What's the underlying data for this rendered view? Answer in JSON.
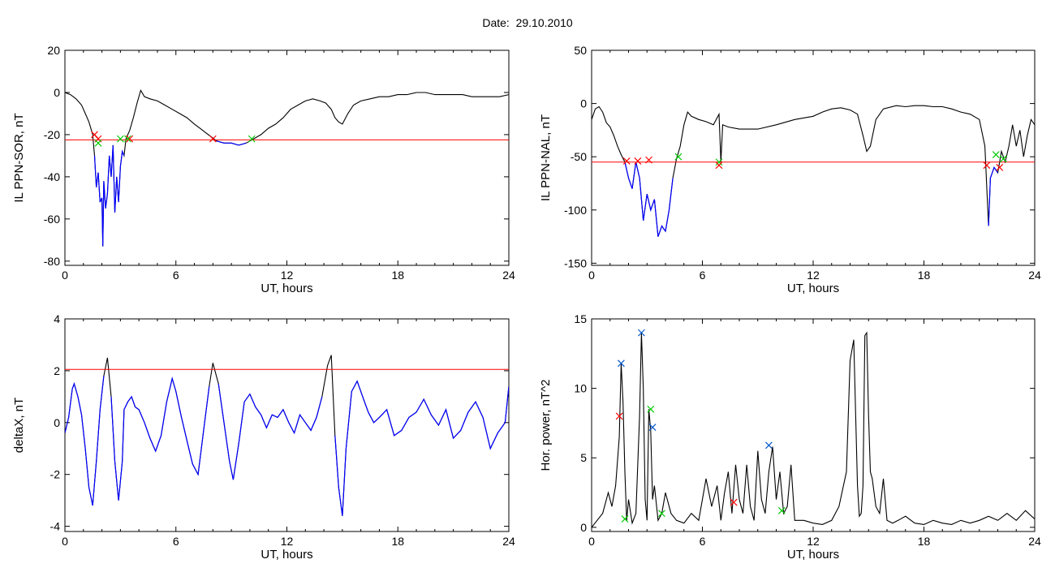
{
  "header": {
    "title_label": "Date:",
    "title_date": "29.10.2010"
  },
  "colors": {
    "trace": "#000000",
    "threshold": "#ff0000",
    "below": "#0000ff",
    "marker_start": "#ff0000",
    "marker_end": "#00cc00",
    "marker_peak": "#0055cc"
  },
  "chart_data": [
    {
      "id": "sor",
      "type": "line",
      "ylabel": "IL PPN-SOR, nT",
      "xlabel": "UT, hours",
      "xlim": [
        0,
        24
      ],
      "ylim": [
        -82,
        20
      ],
      "xticks": [
        0,
        6,
        12,
        18,
        24
      ],
      "yticks": [
        20,
        0,
        -20,
        -40,
        -60,
        -80
      ],
      "threshold": -22.5,
      "series": [
        {
          "x": [
            0,
            0.3,
            0.6,
            0.9,
            1.1,
            1.3,
            1.5,
            1.6,
            1.7,
            1.8,
            1.9,
            2.0,
            2.05,
            2.1,
            2.2,
            2.3,
            2.4,
            2.5,
            2.6,
            2.7,
            2.8,
            2.9,
            3.0,
            3.1,
            3.2,
            3.3,
            3.4,
            3.5,
            3.7,
            3.9,
            4.1,
            4.3,
            4.6,
            5.0,
            5.4,
            5.8,
            6.2,
            6.6,
            7.0,
            7.3,
            7.6,
            7.9,
            8.2,
            8.6,
            9.0,
            9.4,
            9.8,
            10.2,
            10.6,
            11.0,
            11.4,
            11.8,
            12.2,
            12.6,
            13.0,
            13.4,
            13.8,
            14.1,
            14.4,
            14.6,
            14.8,
            15.0,
            15.3,
            15.6,
            16.0,
            16.5,
            17.0,
            17.5,
            18.0,
            18.5,
            19.0,
            19.5,
            20.0,
            20.5,
            21.0,
            21.5,
            22.0,
            22.5,
            23.0,
            23.5,
            24.0
          ],
          "y": [
            0,
            -1,
            -3,
            -6,
            -10,
            -14,
            -20,
            -30,
            -45,
            -38,
            -52,
            -50,
            -73,
            -42,
            -55,
            -48,
            -30,
            -40,
            -25,
            -57,
            -40,
            -52,
            -35,
            -28,
            -30,
            -22,
            -20,
            -18,
            -12,
            -5,
            1,
            -2,
            -3,
            -4,
            -6,
            -8,
            -10,
            -12,
            -15,
            -17,
            -19,
            -21,
            -23,
            -24,
            -24,
            -25,
            -24,
            -22,
            -20,
            -17,
            -15,
            -12,
            -8,
            -6,
            -4,
            -3,
            -4,
            -5,
            -8,
            -12,
            -14,
            -15,
            -10,
            -6,
            -4,
            -3,
            -2,
            -2,
            -1,
            -1,
            0,
            0,
            -1,
            -1,
            -1,
            -1,
            -2,
            -2,
            -2,
            -2,
            -1
          ]
        }
      ],
      "markers": [
        {
          "x": 1.6,
          "y": -20,
          "kind": "start"
        },
        {
          "x": 1.8,
          "y": -22,
          "kind": "start"
        },
        {
          "x": 1.8,
          "y": -24,
          "kind": "end"
        },
        {
          "x": 3.0,
          "y": -22,
          "kind": "end"
        },
        {
          "x": 3.5,
          "y": -22,
          "kind": "start"
        },
        {
          "x": 3.4,
          "y": -22,
          "kind": "end"
        },
        {
          "x": 8.0,
          "y": -22,
          "kind": "start"
        },
        {
          "x": 10.1,
          "y": -22,
          "kind": "end"
        }
      ]
    },
    {
      "id": "nal",
      "type": "line",
      "ylabel": "IL PPN-NAL, nT",
      "xlabel": "UT, hours",
      "xlim": [
        0,
        24
      ],
      "ylim": [
        -152,
        50
      ],
      "xticks": [
        0,
        6,
        12,
        18,
        24
      ],
      "yticks": [
        50,
        0,
        -50,
        -100,
        -150
      ],
      "threshold": -55,
      "series": [
        {
          "x": [
            0,
            0.2,
            0.4,
            0.6,
            0.8,
            1.0,
            1.2,
            1.4,
            1.6,
            1.8,
            2.0,
            2.2,
            2.4,
            2.6,
            2.8,
            3.0,
            3.2,
            3.4,
            3.6,
            3.8,
            4.0,
            4.2,
            4.4,
            4.6,
            4.8,
            5.0,
            5.2,
            5.4,
            5.8,
            6.2,
            6.6,
            6.9,
            7.0,
            7.1,
            7.4,
            8.0,
            9.0,
            10.0,
            11.0,
            12.0,
            12.5,
            13.0,
            13.5,
            14.0,
            14.4,
            14.7,
            14.9,
            15.1,
            15.4,
            15.8,
            16.5,
            17.0,
            17.5,
            18.0,
            18.5,
            19.0,
            19.5,
            20.0,
            20.5,
            21.0,
            21.3,
            21.5,
            21.6,
            21.8,
            22.0,
            22.2,
            22.4,
            22.6,
            22.8,
            23.0,
            23.2,
            23.4,
            23.6,
            23.8,
            24.0
          ],
          "y": [
            -15,
            -5,
            -3,
            -8,
            -18,
            -22,
            -30,
            -40,
            -48,
            -55,
            -70,
            -80,
            -55,
            -70,
            -110,
            -85,
            -100,
            -90,
            -125,
            -115,
            -120,
            -100,
            -70,
            -52,
            -40,
            -20,
            -8,
            -12,
            -15,
            -17,
            -20,
            -10,
            -55,
            -20,
            -22,
            -24,
            -24,
            -20,
            -15,
            -12,
            -8,
            -5,
            -4,
            -6,
            -10,
            -30,
            -45,
            -40,
            -15,
            -5,
            -2,
            -3,
            -2,
            -2,
            -3,
            -3,
            -5,
            -8,
            -10,
            -15,
            -40,
            -115,
            -70,
            -60,
            -65,
            -45,
            -55,
            -40,
            -20,
            -40,
            -25,
            -50,
            -30,
            -15,
            -20
          ]
        }
      ],
      "markers": [
        {
          "x": 1.9,
          "y": -54,
          "kind": "start"
        },
        {
          "x": 2.5,
          "y": -54,
          "kind": "start"
        },
        {
          "x": 3.1,
          "y": -53,
          "kind": "start"
        },
        {
          "x": 4.7,
          "y": -50,
          "kind": "end"
        },
        {
          "x": 6.9,
          "y": -55,
          "kind": "end"
        },
        {
          "x": 6.9,
          "y": -58,
          "kind": "start"
        },
        {
          "x": 21.4,
          "y": -58,
          "kind": "start"
        },
        {
          "x": 21.9,
          "y": -48,
          "kind": "end"
        },
        {
          "x": 22.1,
          "y": -60,
          "kind": "start"
        },
        {
          "x": 22.3,
          "y": -52,
          "kind": "end"
        }
      ]
    },
    {
      "id": "deltax",
      "type": "line",
      "ylabel": "deltaX, nT",
      "xlabel": "UT, hours",
      "xlim": [
        0,
        24
      ],
      "ylim": [
        -4.2,
        4
      ],
      "xticks": [
        0,
        6,
        12,
        18,
        24
      ],
      "yticks": [
        4,
        2,
        0,
        -2,
        -4
      ],
      "threshold": 2.05,
      "series": [
        {
          "x": [
            0,
            0.2,
            0.4,
            0.5,
            0.7,
            0.9,
            1.1,
            1.3,
            1.5,
            1.7,
            1.9,
            2.1,
            2.3,
            2.5,
            2.7,
            2.9,
            3.1,
            3.2,
            3.4,
            3.6,
            3.8,
            4.0,
            4.3,
            4.6,
            4.9,
            5.2,
            5.5,
            5.8,
            6.0,
            6.3,
            6.6,
            6.9,
            7.2,
            7.5,
            7.8,
            8.0,
            8.3,
            8.6,
            8.9,
            9.1,
            9.4,
            9.7,
            10.0,
            10.3,
            10.6,
            10.9,
            11.2,
            11.5,
            11.8,
            12.1,
            12.4,
            12.7,
            13.0,
            13.3,
            13.6,
            13.9,
            14.2,
            14.4,
            14.6,
            14.8,
            15.0,
            15.2,
            15.5,
            15.8,
            16.1,
            16.4,
            16.7,
            17.0,
            17.4,
            17.8,
            18.2,
            18.6,
            19.0,
            19.4,
            19.8,
            20.2,
            20.6,
            21.0,
            21.4,
            21.8,
            22.2,
            22.6,
            23.0,
            23.4,
            23.8,
            24.0
          ],
          "y": [
            -0.4,
            0.2,
            1.3,
            1.5,
            1.0,
            0.3,
            -1.0,
            -2.5,
            -3.2,
            -1.5,
            0.5,
            1.8,
            2.5,
            1.0,
            -1.5,
            -3.0,
            -1.5,
            0.5,
            0.8,
            1.0,
            0.6,
            0.5,
            0.0,
            -0.6,
            -1.1,
            -0.5,
            0.8,
            1.7,
            1.2,
            0.2,
            -0.7,
            -1.6,
            -2.0,
            -0.3,
            1.4,
            2.3,
            1.5,
            0.0,
            -1.5,
            -2.2,
            -0.8,
            0.8,
            1.1,
            0.6,
            0.3,
            -0.2,
            0.3,
            0.2,
            0.5,
            0.0,
            -0.4,
            0.3,
            0.0,
            -0.3,
            0.2,
            1.0,
            2.2,
            2.6,
            -0.5,
            -2.5,
            -3.6,
            -1.0,
            1.2,
            1.6,
            1.0,
            0.4,
            0.0,
            0.2,
            0.5,
            -0.5,
            -0.3,
            0.2,
            0.4,
            0.9,
            0.3,
            -0.1,
            0.5,
            -0.6,
            -0.3,
            0.4,
            0.8,
            0.2,
            -1.0,
            -0.4,
            0.0,
            1.4
          ]
        }
      ],
      "markers": []
    },
    {
      "id": "power",
      "type": "line",
      "ylabel": "Hor. power, nT^2",
      "xlabel": "UT, hours",
      "xlim": [
        0,
        24
      ],
      "ylim": [
        -0.3,
        15
      ],
      "xticks": [
        0,
        6,
        12,
        18,
        24
      ],
      "yticks": [
        15,
        10,
        5,
        0
      ],
      "threshold": null,
      "series": [
        {
          "x": [
            0,
            0.3,
            0.6,
            0.9,
            1.1,
            1.3,
            1.5,
            1.6,
            1.7,
            1.8,
            1.9,
            2.0,
            2.2,
            2.4,
            2.6,
            2.7,
            2.8,
            2.9,
            3.0,
            3.1,
            3.2,
            3.3,
            3.4,
            3.6,
            3.8,
            4.0,
            4.3,
            4.6,
            5.0,
            5.4,
            5.8,
            6.0,
            6.2,
            6.5,
            6.8,
            7.0,
            7.2,
            7.4,
            7.6,
            7.8,
            8.0,
            8.2,
            8.4,
            8.6,
            8.8,
            9.0,
            9.2,
            9.4,
            9.6,
            9.8,
            10.0,
            10.2,
            10.4,
            10.6,
            10.8,
            11.0,
            11.5,
            12.0,
            12.5,
            13.0,
            13.4,
            13.8,
            14.0,
            14.2,
            14.4,
            14.5,
            14.6,
            14.7,
            14.8,
            14.9,
            15.0,
            15.1,
            15.2,
            15.4,
            15.6,
            15.8,
            16.0,
            16.3,
            16.6,
            17.0,
            17.5,
            18.0,
            18.5,
            19.0,
            19.5,
            20.0,
            20.5,
            21.0,
            21.5,
            22.0,
            22.5,
            23.0,
            23.5,
            24.0
          ],
          "y": [
            0,
            0.5,
            1.0,
            2.5,
            1.5,
            3.0,
            6.5,
            11.8,
            9.0,
            4.0,
            0.5,
            2.0,
            0.3,
            1.0,
            8.0,
            14.0,
            10.0,
            2.0,
            0.5,
            8.5,
            7.0,
            2.0,
            3.0,
            0.5,
            1.0,
            2.5,
            1.0,
            0.5,
            0.3,
            1.0,
            0.5,
            2.0,
            3.5,
            1.5,
            3.0,
            0.5,
            2.5,
            4.0,
            1.0,
            4.5,
            2.0,
            1.0,
            4.5,
            1.5,
            0.5,
            5.5,
            2.0,
            1.0,
            4.0,
            5.8,
            2.0,
            4.0,
            1.0,
            1.5,
            4.5,
            0.5,
            0.5,
            0.3,
            0.2,
            0.5,
            1.5,
            4.0,
            12.0,
            13.5,
            3.0,
            0.8,
            1.0,
            3.0,
            13.8,
            14.0,
            8.0,
            4.0,
            3.5,
            1.5,
            1.0,
            3.5,
            0.5,
            0.3,
            0.5,
            0.8,
            0.3,
            0.2,
            0.5,
            0.3,
            0.2,
            0.5,
            0.3,
            0.5,
            0.8,
            0.5,
            1.0,
            0.5,
            1.2,
            0.6
          ]
        }
      ],
      "markers": [
        {
          "x": 1.5,
          "y": 8.0,
          "kind": "start"
        },
        {
          "x": 1.6,
          "y": 11.8,
          "kind": "peak"
        },
        {
          "x": 2.7,
          "y": 14.0,
          "kind": "peak"
        },
        {
          "x": 3.2,
          "y": 8.5,
          "kind": "end"
        },
        {
          "x": 3.3,
          "y": 7.2,
          "kind": "peak"
        },
        {
          "x": 1.8,
          "y": 0.6,
          "kind": "end"
        },
        {
          "x": 7.7,
          "y": 1.8,
          "kind": "start"
        },
        {
          "x": 9.6,
          "y": 5.9,
          "kind": "peak"
        },
        {
          "x": 10.3,
          "y": 1.2,
          "kind": "end"
        },
        {
          "x": 3.8,
          "y": 1.0,
          "kind": "end"
        }
      ]
    }
  ]
}
